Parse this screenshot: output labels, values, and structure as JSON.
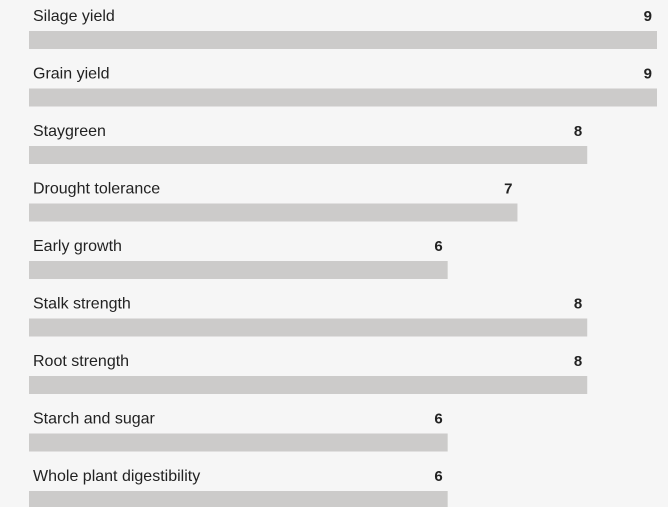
{
  "chart_data": {
    "type": "bar",
    "orientation": "horizontal",
    "categories": [
      "Silage yield",
      "Grain yield",
      "Staygreen",
      "Drought tolerance",
      "Early growth",
      "Stalk strength",
      "Root strength",
      "Starch and sugar",
      "Whole plant digestibility"
    ],
    "values": [
      9,
      9,
      8,
      7,
      6,
      8,
      8,
      6,
      6
    ],
    "color": "#cccbca",
    "xlim": [
      0,
      9
    ]
  }
}
